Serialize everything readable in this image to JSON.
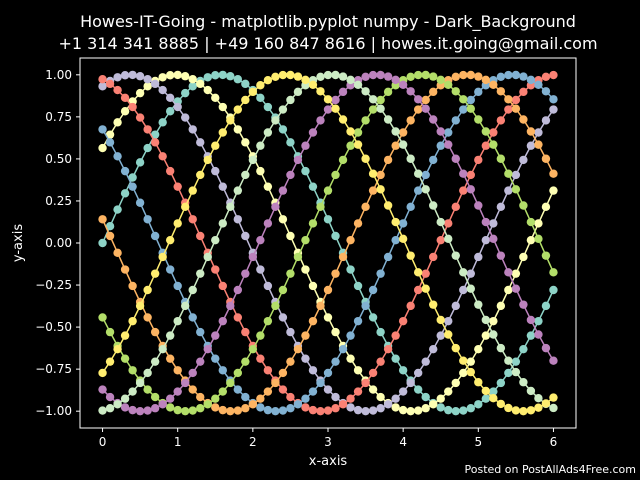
{
  "footer": {
    "text": "Posted on PostAllAds4Free.com"
  },
  "chart_data": {
    "type": "line",
    "title": "Howes-IT-Going - matplotlib.pyplot numpy - Dark_Background",
    "subtitle": "+1 314 341 8885 | +49 160 847 8616 | howes.it.going@gmail.com",
    "xlabel": "x-axis",
    "ylabel": "y-axis",
    "xlim": [
      -0.3,
      6.3
    ],
    "ylim": [
      -1.1,
      1.1
    ],
    "xticks": [
      0,
      1,
      2,
      3,
      4,
      5,
      6
    ],
    "yticks": [
      -1.0,
      -0.75,
      -0.5,
      -0.25,
      0.0,
      0.25,
      0.5,
      0.75,
      1.0
    ],
    "ytick_labels": [
      "−1.00",
      "−0.75",
      "−0.50",
      "−0.25",
      "0.00",
      "0.25",
      "0.50",
      "0.75",
      "1.00"
    ],
    "grid": false,
    "legend": "none",
    "x_start": 0,
    "x_step": 0.1,
    "point_count": 61,
    "series": [
      {
        "color": "#8dd3c7",
        "function": "sin",
        "phase": 0.0
      },
      {
        "color": "#feffb3",
        "function": "sin",
        "phase": 0.6
      },
      {
        "color": "#bfbbd9",
        "function": "sin",
        "phase": 1.2
      },
      {
        "color": "#fa8174",
        "function": "sin",
        "phase": 1.8
      },
      {
        "color": "#81b1d2",
        "function": "sin",
        "phase": 2.4
      },
      {
        "color": "#fdb462",
        "function": "sin",
        "phase": 3.0
      },
      {
        "color": "#b3de69",
        "function": "sin",
        "phase": 3.6
      },
      {
        "color": "#bc82bd",
        "function": "sin",
        "phase": 4.2
      },
      {
        "color": "#ccebc4",
        "function": "sin",
        "phase": 4.8
      },
      {
        "color": "#ffed6f",
        "function": "sin",
        "phase": 5.4
      }
    ]
  }
}
